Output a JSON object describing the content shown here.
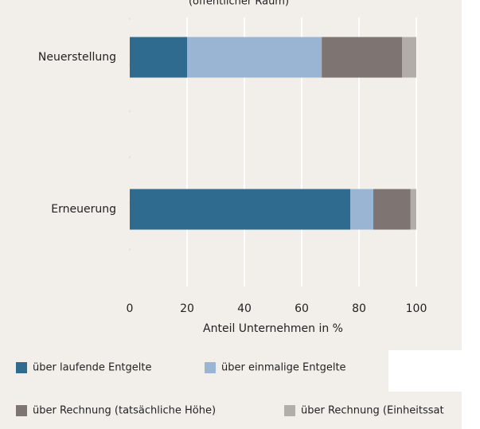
{
  "chart_data": {
    "type": "stacked_barh",
    "title": "(öffentlicher Raum)",
    "categories": [
      "Neuerstellung",
      "Erneuerung"
    ],
    "series": [
      {
        "name": "über laufende Entgelte",
        "color": "#2f6b8e",
        "values": [
          20,
          77
        ]
      },
      {
        "name": "über einmalige Entgelte",
        "color": "#9ab5d3",
        "values": [
          47,
          8
        ]
      },
      {
        "name": "über Rechnung (tatsächliche Höhe)",
        "color": "#7e7572",
        "values": [
          28,
          13
        ]
      },
      {
        "name": "über Rechnung (Einheitssat",
        "color": "#b3adaa",
        "values": [
          5,
          2
        ]
      }
    ],
    "xlabel": "Anteil Unternehmen in %",
    "xlim": [
      0,
      100
    ],
    "xticks": [
      0,
      20,
      40,
      60,
      80,
      100
    ],
    "grid": true
  }
}
